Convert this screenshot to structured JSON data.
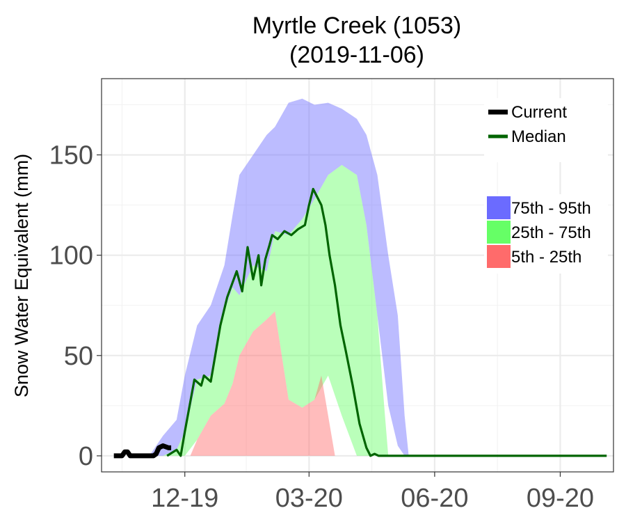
{
  "chart_data": {
    "type": "area",
    "title": "Myrtle Creek (1053)",
    "subtitle": "(2019-11-06)",
    "xlabel": "",
    "ylabel": "Snow Water Equivalent (mm)",
    "x_ticks": [
      "12-19",
      "03-20",
      "06-20",
      "09-20"
    ],
    "y_ticks": [
      0,
      50,
      100,
      150
    ],
    "ylim": [
      -8,
      188
    ],
    "xlim": [
      "2019-10-01",
      "2020-10-10"
    ],
    "grid": true,
    "legend_position": "top-right",
    "colors": {
      "current": "#000000",
      "median": "#006400",
      "band_75_95": "#6b6bff",
      "band_25_75": "#66ff66",
      "band_5_25": "#ff6b6b"
    },
    "legend": {
      "lines": [
        {
          "label": "Current",
          "key": "current"
        },
        {
          "label": "Median",
          "key": "median"
        }
      ],
      "bands": [
        {
          "label": "75th - 95th",
          "key": "band_75_95"
        },
        {
          "label": "25th - 75th",
          "key": "band_25_75"
        },
        {
          "label": "5th - 25th",
          "key": "band_5_25"
        }
      ]
    },
    "series": [
      {
        "name": "Current",
        "x": [
          "2019-10-10",
          "2019-10-16",
          "2019-10-18",
          "2019-10-20",
          "2019-10-22",
          "2019-10-25",
          "2019-11-01",
          "2019-11-08",
          "2019-11-10",
          "2019-11-12",
          "2019-11-15",
          "2019-11-19",
          "2019-11-21"
        ],
        "y": [
          0,
          0,
          2,
          2,
          0,
          0,
          0,
          0,
          1,
          4,
          5,
          4,
          4
        ]
      },
      {
        "name": "Median",
        "x": [
          "2019-11-18",
          "2019-11-25",
          "2019-11-28",
          "2019-12-01",
          "2019-12-08",
          "2019-12-13",
          "2019-12-15",
          "2019-12-20",
          "2019-12-27",
          "2020-01-01",
          "2020-01-08",
          "2020-01-12",
          "2020-01-16",
          "2020-01-20",
          "2020-01-24",
          "2020-01-26",
          "2020-01-29",
          "2020-02-01",
          "2020-02-03",
          "2020-02-07",
          "2020-02-12",
          "2020-02-17",
          "2020-02-22",
          "2020-02-27",
          "2020-03-01",
          "2020-03-04",
          "2020-03-07",
          "2020-03-10",
          "2020-03-13",
          "2020-03-16",
          "2020-03-20",
          "2020-03-24",
          "2020-03-28",
          "2020-04-02",
          "2020-04-07",
          "2020-04-12",
          "2020-04-15",
          "2020-04-18",
          "2020-04-21",
          "2020-04-24",
          "2020-04-28",
          "2020-05-03",
          "2020-10-05"
        ],
        "y": [
          0,
          3,
          0,
          12,
          38,
          35,
          40,
          37,
          65,
          79,
          92,
          82,
          104,
          88,
          100,
          85,
          98,
          105,
          110,
          108,
          112,
          110,
          113,
          115,
          125,
          133,
          129,
          125,
          115,
          100,
          85,
          65,
          52,
          35,
          16,
          4,
          0,
          1,
          0,
          0,
          0,
          0,
          0
        ]
      },
      {
        "name": "75th - 95th",
        "x": [
          "2019-11-05",
          "2019-11-15",
          "2019-11-25",
          "2019-12-01",
          "2019-12-10",
          "2019-12-20",
          "2019-12-30",
          "2020-01-05",
          "2020-01-10",
          "2020-01-20",
          "2020-01-30",
          "2020-02-05",
          "2020-02-15",
          "2020-02-25",
          "2020-03-05",
          "2020-03-15",
          "2020-03-25",
          "2020-04-05",
          "2020-04-12",
          "2020-04-20",
          "2020-04-28",
          "2020-05-05",
          "2020-05-10",
          "2020-05-13"
        ],
        "low": [
          0,
          0,
          3,
          12,
          38,
          40,
          72,
          84,
          80,
          95,
          92,
          112,
          110,
          118,
          128,
          140,
          145,
          140,
          115,
          70,
          25,
          5,
          0,
          0
        ],
        "high": [
          0,
          10,
          18,
          40,
          65,
          75,
          95,
          120,
          140,
          150,
          160,
          164,
          176,
          178,
          175,
          176,
          173,
          168,
          160,
          140,
          100,
          70,
          20,
          0
        ]
      },
      {
        "name": "25th - 75th",
        "x": [
          "2019-11-15",
          "2019-11-25",
          "2019-12-01",
          "2019-12-10",
          "2019-12-20",
          "2019-12-30",
          "2020-01-05",
          "2020-01-10",
          "2020-01-20",
          "2020-01-30",
          "2020-02-05",
          "2020-02-15",
          "2020-02-25",
          "2020-03-05",
          "2020-03-15",
          "2020-03-25",
          "2020-04-05",
          "2020-04-12",
          "2020-04-20",
          "2020-04-25",
          "2020-04-28"
        ],
        "low": [
          0,
          0,
          0,
          8,
          20,
          26,
          36,
          50,
          62,
          68,
          72,
          28,
          24,
          28,
          40,
          20,
          0,
          0,
          0,
          0,
          0
        ],
        "high": [
          0,
          3,
          12,
          38,
          40,
          72,
          84,
          80,
          95,
          92,
          112,
          110,
          118,
          128,
          140,
          145,
          140,
          115,
          70,
          25,
          0
        ]
      },
      {
        "name": "5th - 25th",
        "x": [
          "2019-12-05",
          "2019-12-10",
          "2019-12-20",
          "2019-12-30",
          "2020-01-05",
          "2020-01-10",
          "2020-01-20",
          "2020-01-30",
          "2020-02-05",
          "2020-02-15",
          "2020-02-25",
          "2020-03-05",
          "2020-03-10",
          "2020-03-15",
          "2020-03-20"
        ],
        "low": [
          0,
          0,
          0,
          0,
          0,
          0,
          0,
          0,
          0,
          0,
          0,
          0,
          0,
          0,
          0
        ],
        "high": [
          0,
          8,
          20,
          26,
          36,
          50,
          62,
          68,
          72,
          28,
          24,
          28,
          40,
          20,
          0
        ]
      }
    ]
  }
}
